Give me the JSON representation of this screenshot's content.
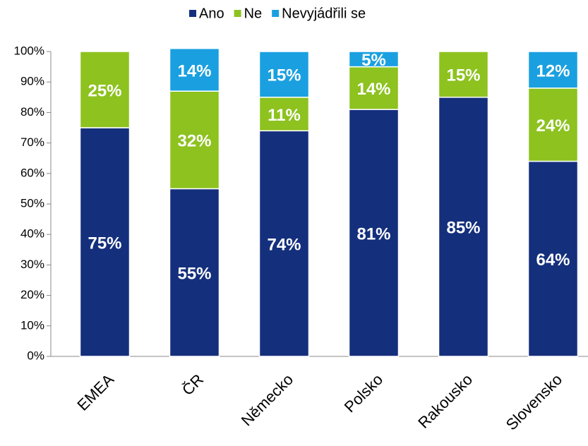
{
  "chart_data": {
    "type": "stacked_bar",
    "categories": [
      "EMEA",
      "ČR",
      "Německo",
      "Polsko",
      "Rakousko",
      "Slovensko"
    ],
    "series": [
      {
        "name": "Ano",
        "color": "#142f7c",
        "values": [
          75,
          55,
          74,
          81,
          85,
          64
        ],
        "value_labels": [
          "75%",
          "55%",
          "74%",
          "81%",
          "85%",
          "64%"
        ]
      },
      {
        "name": "Ne",
        "color": "#8dc21f",
        "values": [
          25,
          32,
          11,
          14,
          15,
          24
        ],
        "value_labels": [
          "25%",
          "32%",
          "11%",
          "14%",
          "15%",
          "24%"
        ]
      },
      {
        "name": "Nevyjádřili se",
        "color": "#1aa0e0",
        "values": [
          null,
          14,
          15,
          5,
          null,
          12
        ],
        "value_labels": [
          null,
          "14%",
          "15%",
          "5%",
          null,
          "12%"
        ]
      }
    ],
    "ylim": [
      0,
      100
    ],
    "yticks": [
      {
        "value": 0,
        "label": "0%"
      },
      {
        "value": 10,
        "label": "10%"
      },
      {
        "value": 20,
        "label": "20%"
      },
      {
        "value": 30,
        "label": "30%"
      },
      {
        "value": 40,
        "label": "40%"
      },
      {
        "value": 50,
        "label": "50%"
      },
      {
        "value": 60,
        "label": "60%"
      },
      {
        "value": 70,
        "label": "70%"
      },
      {
        "value": 80,
        "label": "80%"
      },
      {
        "value": 90,
        "label": "90%"
      },
      {
        "value": 100,
        "label": "100%"
      }
    ],
    "legend": "top",
    "grid": false
  }
}
